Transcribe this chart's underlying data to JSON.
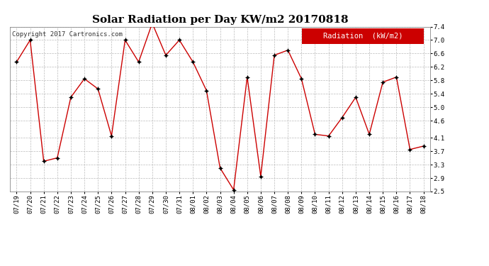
{
  "title": "Solar Radiation per Day KW/m2 20170818",
  "copyright": "Copyright 2017 Cartronics.com",
  "legend_label": "Radiation  (kW/m2)",
  "background_color": "#ffffff",
  "plot_bg_color": "#ffffff",
  "line_color": "#cc0000",
  "marker_color": "#000000",
  "grid_color": "#bbbbbb",
  "dates": [
    "07/19",
    "07/20",
    "07/21",
    "07/22",
    "07/23",
    "07/24",
    "07/25",
    "07/26",
    "07/27",
    "07/28",
    "07/29",
    "07/30",
    "07/31",
    "08/01",
    "08/02",
    "08/03",
    "08/04",
    "08/05",
    "08/06",
    "08/07",
    "08/08",
    "08/09",
    "08/10",
    "08/11",
    "08/12",
    "08/13",
    "08/14",
    "08/15",
    "08/16",
    "08/17",
    "08/18"
  ],
  "values": [
    6.35,
    7.0,
    3.4,
    3.5,
    5.3,
    5.85,
    5.55,
    4.15,
    7.0,
    6.35,
    7.5,
    6.55,
    7.0,
    6.35,
    5.5,
    3.2,
    2.55,
    5.9,
    2.95,
    6.55,
    6.7,
    5.85,
    4.2,
    4.15,
    4.7,
    5.3,
    4.2,
    5.75,
    5.9,
    3.75,
    3.85
  ],
  "ylim": [
    2.5,
    7.4
  ],
  "yticks": [
    2.5,
    2.9,
    3.3,
    3.7,
    4.1,
    4.6,
    5.0,
    5.4,
    5.8,
    6.2,
    6.6,
    7.0,
    7.4
  ],
  "title_fontsize": 11,
  "tick_fontsize": 6.5,
  "copyright_fontsize": 6.5,
  "legend_fontsize": 7.5
}
